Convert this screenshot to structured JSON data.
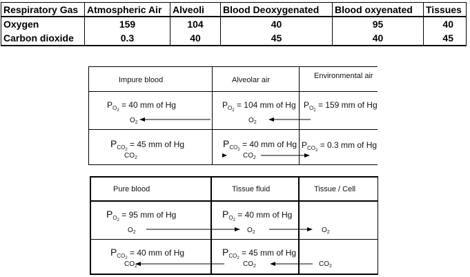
{
  "gas_table": {
    "headers": [
      "Respiratory Gas",
      "Atmospheric Air",
      "Alveoli",
      "Blood Deoxygenated",
      "Blood oxyenated",
      "Tissues"
    ],
    "rows": [
      {
        "gas": "Oxygen",
        "values": [
          "159",
          "104",
          "40",
          "95",
          "40"
        ]
      },
      {
        "gas": "Carbon dioxide",
        "values": [
          "0.3",
          "40",
          "45",
          "40",
          "45"
        ]
      }
    ]
  },
  "diagram1": {
    "headers": [
      "Impure blood",
      "Alveolar air",
      "Environmental air"
    ],
    "o2_row": {
      "impure": {
        "p": "P",
        "sub": "O",
        "subsub": "2",
        "rest": "= 40 mm of Hg"
      },
      "alveolar": {
        "p": "P",
        "sub": "O",
        "subsub": "2",
        "rest": "= 104 mm of Hg"
      },
      "environmental": {
        "p": "P",
        "sub": "O",
        "subsub": "2",
        "rest": "= 159 mm of Hg"
      },
      "gas_left": {
        "base": "O",
        "sub": "2"
      },
      "gas_mid": {
        "base": "O",
        "sub": "2"
      }
    },
    "co2_row": {
      "impure": {
        "p": "P",
        "sub": "CO",
        "subsub": "2",
        "rest": "= 45 mm of Hg"
      },
      "alveolar": {
        "p": "P",
        "sub": "CO",
        "subsub": "2",
        "rest": "= 40 mm of Hg"
      },
      "environmental": {
        "p": "P",
        "sub": "CO",
        "subsub": "2",
        "rest": "= 0.3 mm of Hg"
      },
      "gas_left": {
        "base": "CO",
        "sub": "2"
      },
      "gas_mid": {
        "base": "CO",
        "sub": "2"
      }
    }
  },
  "diagram2": {
    "headers": [
      "Pure blood",
      "Tissue fluid",
      "Tissue / Cell"
    ],
    "o2_row": {
      "pure": {
        "p": "P",
        "sub": "O",
        "subsub": "2",
        "rest": "= 95 mm of Hg"
      },
      "tissue_fluid": {
        "p": "P",
        "sub": "O",
        "subsub": "2",
        "rest": "= 40 mm of Hg"
      },
      "gas_left": {
        "base": "O",
        "sub": "2"
      },
      "gas_mid": {
        "base": "O",
        "sub": "2"
      },
      "gas_right": {
        "base": "O",
        "sub": "2"
      }
    },
    "co2_row": {
      "pure": {
        "p": "P",
        "sub": "CO",
        "subsub": "2",
        "rest": "= 40 mm of Hg"
      },
      "tissue_fluid": {
        "p": "P",
        "sub": "CO",
        "subsub": "2",
        "rest": "= 45 mm of Hg"
      },
      "gas_left": {
        "base": "CO",
        "sub": "2"
      },
      "gas_mid": {
        "base": "CO",
        "sub": "2"
      },
      "gas_right": {
        "base": "CO",
        "sub": "2"
      }
    }
  }
}
